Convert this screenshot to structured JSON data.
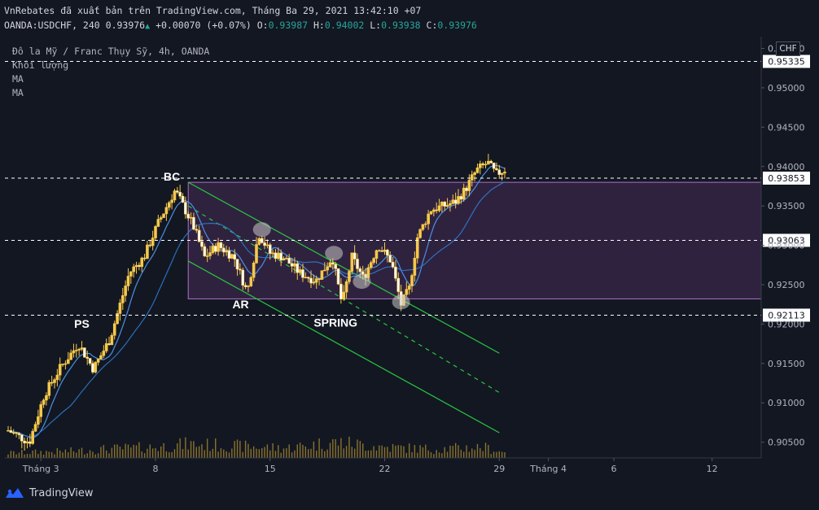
{
  "header": {
    "line1": "VnRebates đã xuất bản trên TradingView.com, Tháng Ba 29, 2021 13:42:10 +07",
    "symbol": "OANDA:USDCHF, 240",
    "last": "0.93976",
    "change_arrow": "▲",
    "change": "+0.00070 (+0.07%)",
    "o_label": "O:",
    "o": "0.93987",
    "h_label": "H:",
    "h": "0.94002",
    "l_label": "L:",
    "l": "0.93938",
    "c_label": "C:",
    "c": "0.93976"
  },
  "legend": {
    "title": "Đô la Mỹ / Franc Thụy Sỹ, 4h, OANDA",
    "volume": "Khối lượng",
    "ma1": "MA",
    "ma2": "MA"
  },
  "currency": "CHF",
  "footer": {
    "brand": "TradingView"
  },
  "colors": {
    "background": "#131722",
    "candle": "#f6c94b",
    "volume": "#a88a2f",
    "ma_fast": "#4a90e2",
    "ma_slow": "#2f7fd6",
    "channel": "#27c93f",
    "range_box": "#7b3f8c",
    "dashed": "#ffffff"
  },
  "chart_data": {
    "type": "candlestick",
    "symbol": "USDCHF",
    "timeframe": "4h",
    "ylim": [
      0.903,
      0.9565
    ],
    "y_ticks": [
      "0.95500",
      "0.95000",
      "0.94500",
      "0.94000",
      "0.93500",
      "0.93000",
      "0.92500",
      "0.92000",
      "0.91500",
      "0.91000",
      "0.90500"
    ],
    "y_tick_values": [
      0.955,
      0.95,
      0.945,
      0.94,
      0.935,
      0.93,
      0.925,
      0.92,
      0.915,
      0.91,
      0.905
    ],
    "x_ticks": [
      "Tháng 3",
      "8",
      "15",
      "22",
      "29",
      "Tháng 4",
      "6",
      "12"
    ],
    "x_tick_days": [
      1,
      8,
      15,
      22,
      29,
      32,
      36,
      42
    ],
    "xlim_days": [
      -1.2,
      45
    ],
    "last_bar_day": 29.45,
    "price_levels": [
      {
        "label": "0.95335",
        "value": 0.95335
      },
      {
        "label": "0.93853",
        "value": 0.93853
      },
      {
        "label": "0.93063",
        "value": 0.93063
      },
      {
        "label": "0.92113",
        "value": 0.92113
      }
    ],
    "range_box": {
      "day_start": 10.0,
      "day_end": 45,
      "top": 0.938,
      "bottom": 0.9232
    },
    "annotations": [
      {
        "text": "PS",
        "day": 3.5,
        "price": 0.9195
      },
      {
        "text": "BC",
        "day": 9.0,
        "price": 0.9382
      },
      {
        "text": "AR",
        "day": 13.2,
        "price": 0.922
      },
      {
        "text": "SPRING",
        "day": 19.0,
        "price": 0.9197
      }
    ],
    "channel": [
      {
        "style": "solid",
        "d1": 10.0,
        "p1": 0.938,
        "d2": 29.0,
        "p2": 0.9163
      },
      {
        "style": "dashed",
        "d1": 10.0,
        "p1": 0.935,
        "d2": 29.0,
        "p2": 0.9113
      },
      {
        "style": "solid",
        "d1": 10.0,
        "p1": 0.928,
        "d2": 29.0,
        "p2": 0.9062
      }
    ],
    "highlights": [
      {
        "day": 14.5,
        "price": 0.932
      },
      {
        "day": 18.9,
        "price": 0.929
      },
      {
        "day": 20.6,
        "price": 0.9254
      },
      {
        "day": 23.0,
        "price": 0.9228
      }
    ],
    "close_path": [
      {
        "day": -1.0,
        "close": 0.9065
      },
      {
        "day": 0.3,
        "close": 0.905
      },
      {
        "day": 1.2,
        "close": 0.911
      },
      {
        "day": 2.2,
        "close": 0.9145
      },
      {
        "day": 3.3,
        "close": 0.9175
      },
      {
        "day": 4.2,
        "close": 0.9143
      },
      {
        "day": 5.2,
        "close": 0.918
      },
      {
        "day": 6.4,
        "close": 0.9265
      },
      {
        "day": 7.3,
        "close": 0.9285
      },
      {
        "day": 8.2,
        "close": 0.933
      },
      {
        "day": 9.2,
        "close": 0.937
      },
      {
        "day": 10.3,
        "close": 0.9325
      },
      {
        "day": 11.0,
        "close": 0.9285
      },
      {
        "day": 11.8,
        "close": 0.93
      },
      {
        "day": 12.8,
        "close": 0.9285
      },
      {
        "day": 13.6,
        "close": 0.924
      },
      {
        "day": 14.3,
        "close": 0.9315
      },
      {
        "day": 15.0,
        "close": 0.929
      },
      {
        "day": 15.8,
        "close": 0.9285
      },
      {
        "day": 16.8,
        "close": 0.9265
      },
      {
        "day": 17.8,
        "close": 0.9255
      },
      {
        "day": 18.8,
        "close": 0.9285
      },
      {
        "day": 19.4,
        "close": 0.9225
      },
      {
        "day": 20.0,
        "close": 0.9285
      },
      {
        "day": 20.7,
        "close": 0.9258
      },
      {
        "day": 21.6,
        "close": 0.93
      },
      {
        "day": 22.4,
        "close": 0.928
      },
      {
        "day": 23.0,
        "close": 0.9225
      },
      {
        "day": 23.5,
        "close": 0.9245
      },
      {
        "day": 24.0,
        "close": 0.931
      },
      {
        "day": 24.8,
        "close": 0.9345
      },
      {
        "day": 25.6,
        "close": 0.935
      },
      {
        "day": 26.3,
        "close": 0.9355
      },
      {
        "day": 26.9,
        "close": 0.937
      },
      {
        "day": 27.6,
        "close": 0.9395
      },
      {
        "day": 28.3,
        "close": 0.9405
      },
      {
        "day": 28.8,
        "close": 0.939
      },
      {
        "day": 29.45,
        "close": 0.93976
      }
    ],
    "volume_profile": [
      {
        "day": -1.0,
        "vol": 0.25
      },
      {
        "day": 3.0,
        "vol": 0.35
      },
      {
        "day": 5.0,
        "vol": 0.45
      },
      {
        "day": 8.0,
        "vol": 0.55
      },
      {
        "day": 10.0,
        "vol": 0.7
      },
      {
        "day": 13.0,
        "vol": 0.6
      },
      {
        "day": 16.0,
        "vol": 0.5
      },
      {
        "day": 19.0,
        "vol": 0.8
      },
      {
        "day": 22.0,
        "vol": 0.55
      },
      {
        "day": 25.0,
        "vol": 0.45
      },
      {
        "day": 28.0,
        "vol": 0.55
      },
      {
        "day": 29.45,
        "vol": 0.25
      }
    ],
    "volume_scale": 0.065
  }
}
